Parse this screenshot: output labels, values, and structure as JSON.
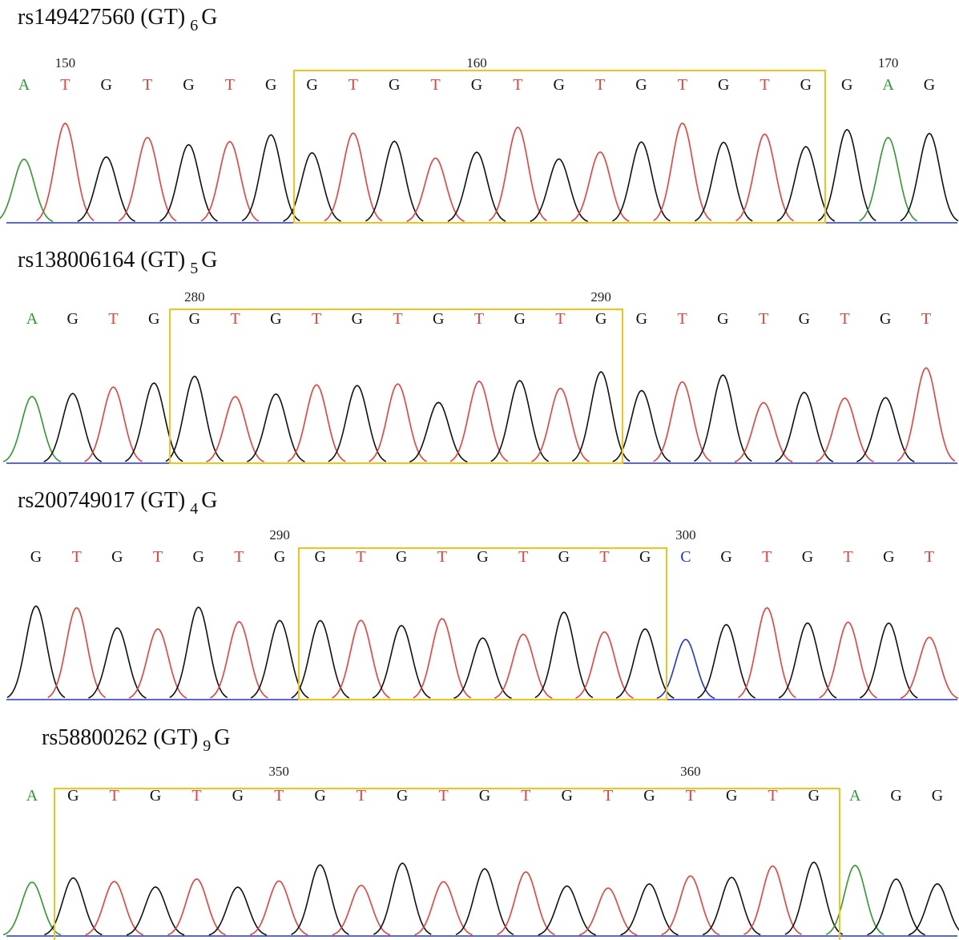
{
  "panels": [
    {
      "title": {
        "text": "rs149427560 (GT)",
        "subscript": "6",
        "suffix": "G"
      },
      "bases": [
        "A",
        "T",
        "G",
        "T",
        "G",
        "T",
        "G",
        "G",
        "T",
        "G",
        "T",
        "G",
        "T",
        "G",
        "T",
        "G",
        "T",
        "G",
        "T",
        "G",
        "G",
        "A",
        "G"
      ],
      "ruler": [
        null,
        "150",
        null,
        null,
        null,
        null,
        null,
        null,
        null,
        null,
        null,
        "160",
        null,
        null,
        null,
        null,
        null,
        null,
        null,
        null,
        null,
        "170",
        null
      ]
    },
    {
      "title": {
        "text": "rs138006164 (GT)",
        "subscript": "5",
        "suffix": "G"
      },
      "bases": [
        "A",
        "G",
        "T",
        "G",
        "G",
        "T",
        "G",
        "T",
        "G",
        "T",
        "G",
        "T",
        "G",
        "T",
        "G",
        "G",
        "T",
        "G",
        "T",
        "G",
        "T",
        "G",
        "T"
      ],
      "ruler": [
        null,
        null,
        null,
        null,
        "280",
        null,
        null,
        null,
        null,
        null,
        null,
        null,
        null,
        null,
        "290",
        null,
        null,
        null,
        null,
        null,
        null,
        null,
        null
      ]
    },
    {
      "title": {
        "text": "rs200749017 (GT)",
        "subscript": "4",
        "suffix": "G"
      },
      "bases": [
        "G",
        "T",
        "G",
        "T",
        "G",
        "T",
        "G",
        "G",
        "T",
        "G",
        "T",
        "G",
        "T",
        "G",
        "T",
        "G",
        "C",
        "G",
        "T",
        "G",
        "T",
        "G",
        "T"
      ],
      "ruler": [
        null,
        null,
        null,
        null,
        null,
        null,
        "290",
        null,
        null,
        null,
        null,
        null,
        null,
        null,
        null,
        null,
        "300",
        null,
        null,
        null,
        null,
        null,
        null
      ]
    },
    {
      "title": {
        "text": "rs58800262 (GT)",
        "subscript": "9",
        "suffix": "G"
      },
      "bases": [
        "A",
        "G",
        "T",
        "G",
        "T",
        "G",
        "T",
        "G",
        "T",
        "G",
        "T",
        "G",
        "T",
        "G",
        "T",
        "G",
        "T",
        "G",
        "T",
        "G",
        "A",
        "G",
        "G"
      ],
      "ruler": [
        null,
        null,
        null,
        null,
        null,
        null,
        "350",
        null,
        null,
        null,
        null,
        null,
        null,
        null,
        null,
        null,
        "360",
        null,
        null,
        null,
        null,
        null,
        null
      ]
    }
  ]
}
